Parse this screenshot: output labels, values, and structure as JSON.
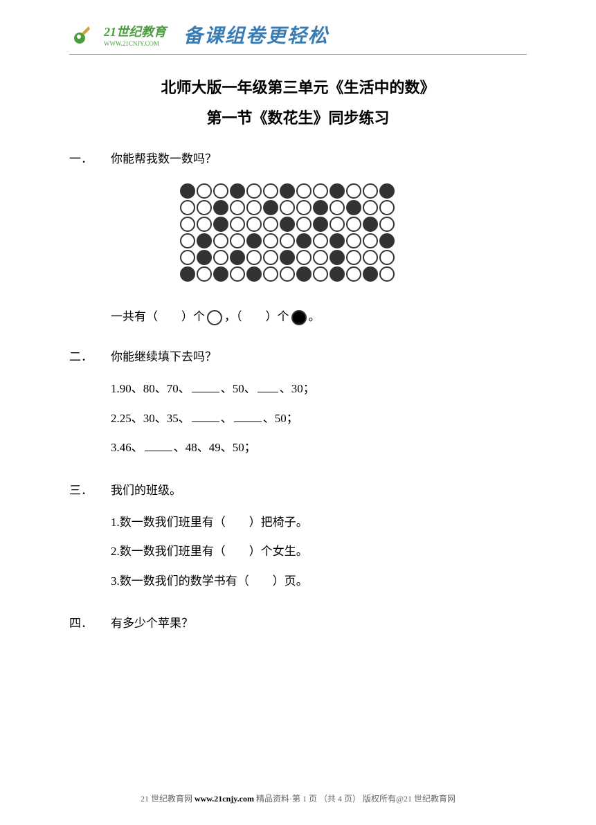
{
  "header": {
    "brand_main": "21世纪教育",
    "brand_sub": "WWW.21CNJY.COM",
    "slogan": "备课组卷更轻松"
  },
  "title": "北师大版一年级第三单元《生活中的数》",
  "subtitle": "第一节《数花生》同步练习",
  "sections": {
    "one": {
      "num": "一．",
      "title": "你能帮我数一数吗？",
      "question": "一共有（　　）个",
      "question_mid": "，（　　）个",
      "question_end": "。"
    },
    "two": {
      "num": "二．",
      "title": "你能继续填下去吗？",
      "items": [
        "1.90、80、70、",
        "、50、",
        "、30；",
        "2.25、30、35、",
        "、",
        "、50；",
        "3.46、",
        "、48、49、50；"
      ]
    },
    "three": {
      "num": "三．",
      "title": "我们的班级。",
      "items": [
        "1.数一数我们班里有（　　）把椅子。",
        "2.数一数我们班里有（　　）个女生。",
        "3.数一数我们的数学书有（　　）页。"
      ]
    },
    "four": {
      "num": "四．",
      "title": "有多少个苹果？"
    }
  },
  "circles": {
    "rows": [
      [
        1,
        0,
        0,
        1,
        0,
        0,
        1,
        0,
        0,
        1,
        0,
        0,
        1
      ],
      [
        0,
        0,
        1,
        0,
        0,
        1,
        0,
        0,
        1,
        0,
        1,
        0,
        0
      ],
      [
        0,
        0,
        1,
        0,
        0,
        0,
        1,
        0,
        1,
        0,
        0,
        1,
        0
      ],
      [
        0,
        1,
        0,
        0,
        1,
        0,
        0,
        1,
        0,
        1,
        0,
        0,
        1
      ],
      [
        0,
        1,
        0,
        1,
        0,
        0,
        1,
        0,
        0,
        1,
        0,
        0,
        0
      ],
      [
        1,
        0,
        1,
        0,
        1,
        0,
        0,
        1,
        0,
        1,
        0,
        1,
        0
      ]
    ],
    "filled_color": "#333333",
    "empty_color": "#ffffff",
    "border_color": "#333333"
  },
  "footer": {
    "prefix": "21 世纪教育网 ",
    "url": "www.21cnjy.com",
    "middle": " 精品资料·第 1 页  （共 4 页） 版权所有@21 世纪教育网"
  }
}
